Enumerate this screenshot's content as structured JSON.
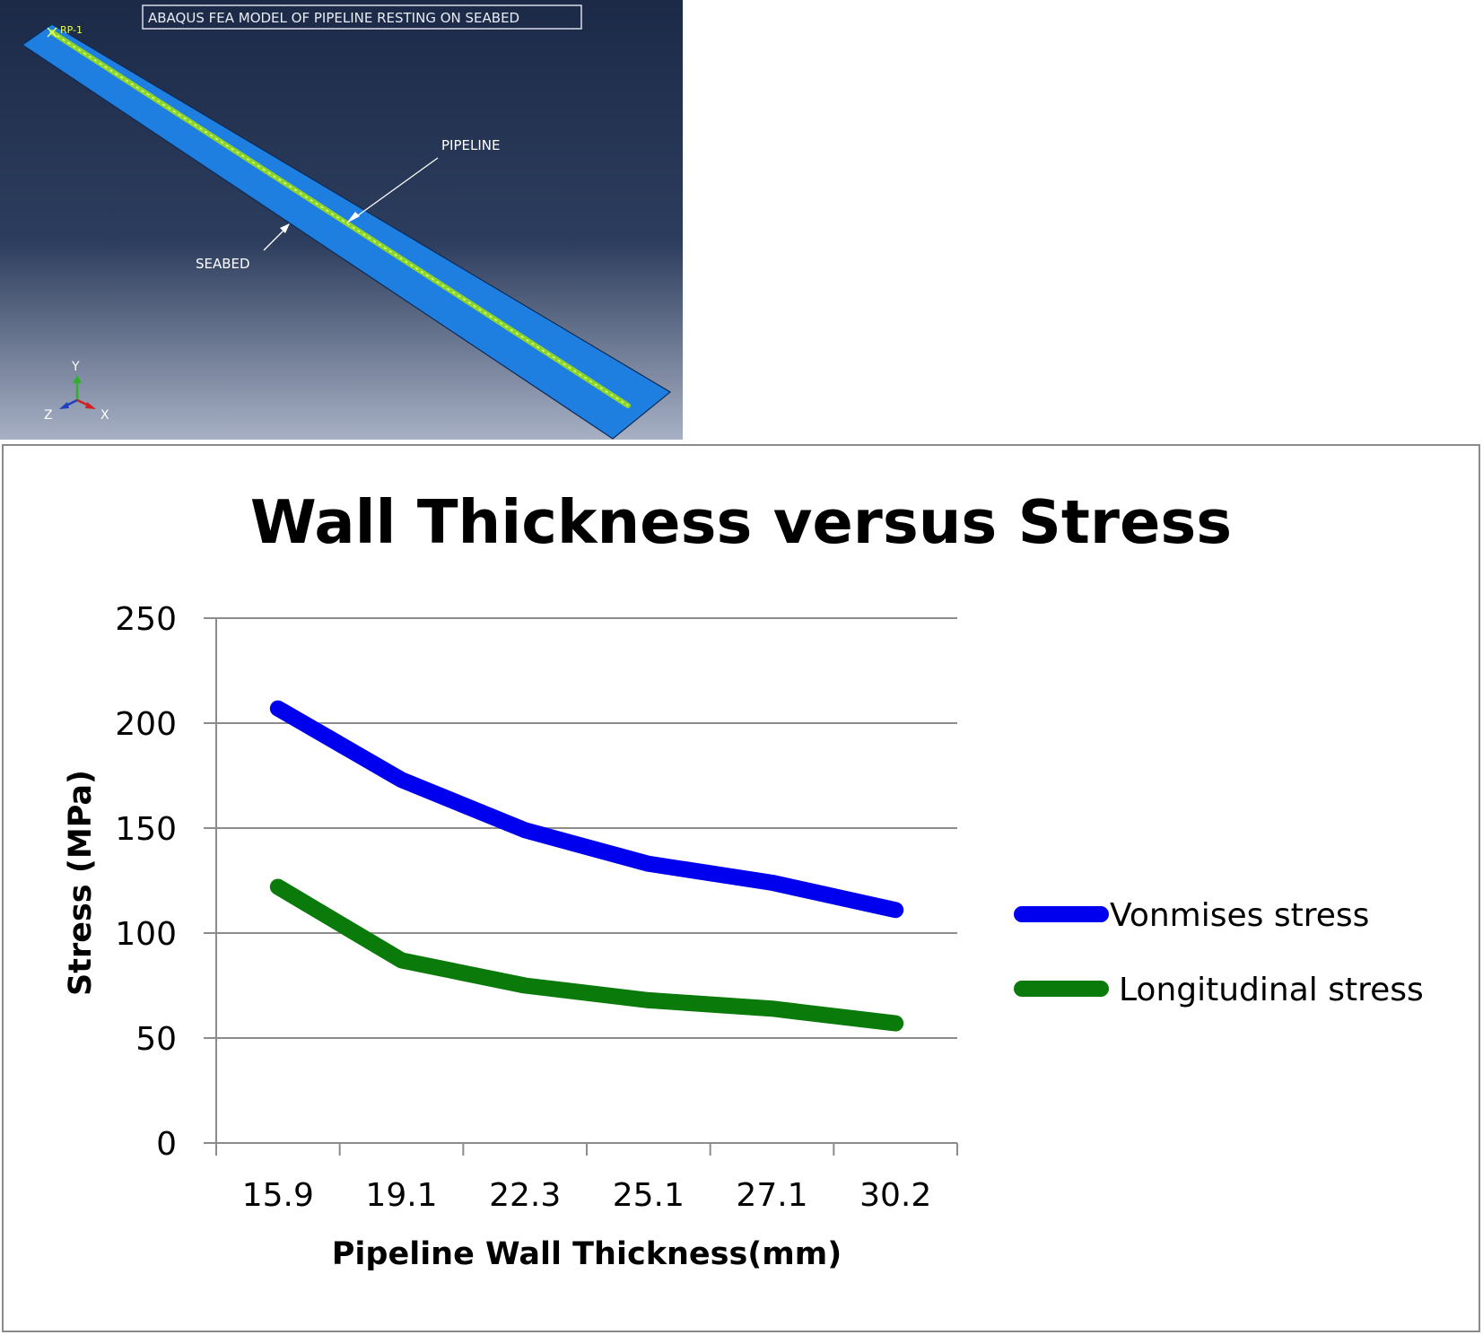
{
  "fea_model": {
    "title": "ABAQUS FEA MODEL OF PIPELINE RESTING ON SEABED",
    "reference_point": "RP-1",
    "labels": {
      "pipeline": "PIPELINE",
      "seabed": "SEABED"
    },
    "axes": {
      "y": "Y",
      "z": "Z",
      "x": "X"
    },
    "colors": {
      "background_top": "#1c2a48",
      "background_bottom": "#a7b0c4",
      "seabed": "#1f7fe0",
      "pipeline": "#8fd42a",
      "axis_y": "#2fb12f",
      "axis_x": "#d02020",
      "axis_z": "#2040c0"
    }
  },
  "chart_data": {
    "type": "line",
    "title": "Wall Thickness versus Stress",
    "xlabel": "Pipeline Wall Thickness(mm)",
    "ylabel": "Stress (MPa)",
    "categories": [
      "15.9",
      "19.1",
      "22.3",
      "25.1",
      "27.1",
      "30.2"
    ],
    "yticks": [
      "0",
      "50",
      "100",
      "150",
      "200",
      "250"
    ],
    "ylim": [
      0,
      250
    ],
    "grid": true,
    "legend_position": "right",
    "series": [
      {
        "name": "Vonmises stress",
        "values": [
          207,
          173,
          149,
          133,
          124,
          111
        ],
        "color": "#0000ee"
      },
      {
        "name": "Longitudinal stress",
        "values": [
          122,
          87,
          75,
          68,
          64,
          57
        ],
        "color": "#0a7a0a"
      }
    ]
  }
}
